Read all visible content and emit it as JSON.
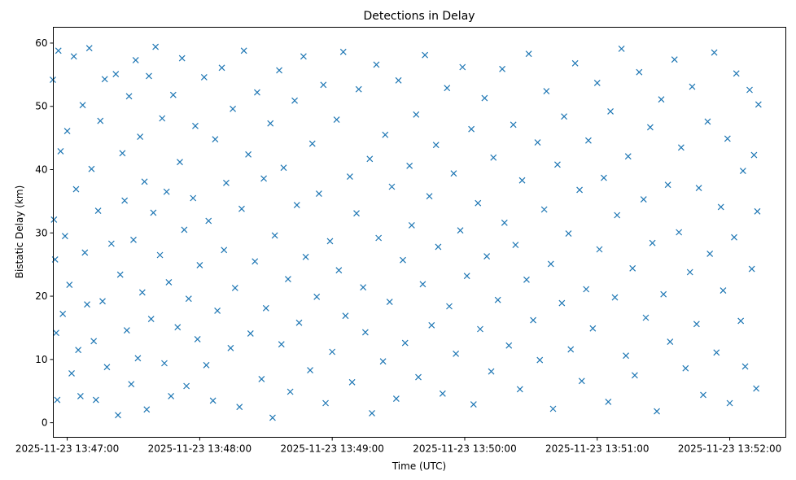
{
  "chart_data": {
    "type": "scatter",
    "title": "Detections in Delay",
    "xlabel": "Time (UTC)",
    "ylabel": "Bistatic Delay (km)",
    "marker": "x",
    "color": "#1f77b4",
    "x_unit": "seconds since 2025-11-23 13:47:00",
    "xlim": [
      -6.3,
      325.4
    ],
    "ylim": [
      -2.3,
      62.5
    ],
    "xticks": [
      {
        "value": 0,
        "label": "2025-11-23 13:47:00"
      },
      {
        "value": 60,
        "label": "2025-11-23 13:48:00"
      },
      {
        "value": 120,
        "label": "2025-11-23 13:49:00"
      },
      {
        "value": 180,
        "label": "2025-11-23 13:50:00"
      },
      {
        "value": 240,
        "label": "2025-11-23 13:51:00"
      },
      {
        "value": 300,
        "label": "2025-11-23 13:52:00"
      }
    ],
    "yticks": [
      {
        "value": 0,
        "label": "0"
      },
      {
        "value": 10,
        "label": "10"
      },
      {
        "value": 20,
        "label": "20"
      },
      {
        "value": 30,
        "label": "30"
      },
      {
        "value": 40,
        "label": "40"
      },
      {
        "value": 50,
        "label": "50"
      },
      {
        "value": 60,
        "label": "60"
      }
    ],
    "points": [
      [
        -6.5,
        54.2
      ],
      [
        -6,
        32.1
      ],
      [
        -5.5,
        25.8
      ],
      [
        -5,
        14.2
      ],
      [
        -4.5,
        3.6
      ],
      [
        -4,
        58.8
      ],
      [
        -3,
        42.9
      ],
      [
        -2,
        17.2
      ],
      [
        -1,
        29.5
      ],
      [
        0,
        46.1
      ],
      [
        1,
        21.8
      ],
      [
        2,
        7.8
      ],
      [
        3,
        57.9
      ],
      [
        4,
        36.9
      ],
      [
        5,
        11.5
      ],
      [
        6,
        4.2
      ],
      [
        7,
        50.2
      ],
      [
        8,
        26.9
      ],
      [
        9,
        18.7
      ],
      [
        10,
        59.2
      ],
      [
        11,
        40.1
      ],
      [
        12,
        12.9
      ],
      [
        13,
        3.6
      ],
      [
        14,
        33.5
      ],
      [
        15,
        47.7
      ],
      [
        16,
        19.2
      ],
      [
        17,
        54.3
      ],
      [
        18,
        8.8
      ],
      [
        20,
        28.3
      ],
      [
        22,
        55.1
      ],
      [
        23,
        1.2
      ],
      [
        24,
        23.4
      ],
      [
        25,
        42.6
      ],
      [
        26,
        35.1
      ],
      [
        27,
        14.6
      ],
      [
        28,
        51.6
      ],
      [
        29,
        6.1
      ],
      [
        30,
        28.9
      ],
      [
        31,
        57.3
      ],
      [
        32,
        10.2
      ],
      [
        33,
        45.2
      ],
      [
        34,
        20.6
      ],
      [
        35,
        38.1
      ],
      [
        36,
        2.1
      ],
      [
        37,
        54.8
      ],
      [
        38,
        16.4
      ],
      [
        39,
        33.2
      ],
      [
        40,
        59.4
      ],
      [
        42,
        26.5
      ],
      [
        43,
        48.1
      ],
      [
        44,
        9.4
      ],
      [
        45,
        36.5
      ],
      [
        46,
        22.2
      ],
      [
        47,
        4.2
      ],
      [
        48,
        51.8
      ],
      [
        50,
        15.1
      ],
      [
        51,
        41.2
      ],
      [
        52,
        57.6
      ],
      [
        53,
        30.5
      ],
      [
        54,
        5.8
      ],
      [
        55,
        19.6
      ],
      [
        57,
        35.5
      ],
      [
        58,
        46.9
      ],
      [
        59,
        13.2
      ],
      [
        60,
        24.9
      ],
      [
        62,
        54.6
      ],
      [
        63,
        9.1
      ],
      [
        64,
        31.9
      ],
      [
        66,
        3.5
      ],
      [
        67,
        44.8
      ],
      [
        68,
        17.7
      ],
      [
        70,
        56.1
      ],
      [
        71,
        27.3
      ],
      [
        72,
        37.9
      ],
      [
        74,
        11.8
      ],
      [
        75,
        49.6
      ],
      [
        76,
        21.3
      ],
      [
        78,
        2.5
      ],
      [
        79,
        33.8
      ],
      [
        80,
        58.8
      ],
      [
        82,
        42.4
      ],
      [
        83,
        14.1
      ],
      [
        85,
        25.5
      ],
      [
        86,
        52.2
      ],
      [
        88,
        6.9
      ],
      [
        89,
        38.6
      ],
      [
        90,
        18.1
      ],
      [
        92,
        47.3
      ],
      [
        93,
        0.8
      ],
      [
        94,
        29.6
      ],
      [
        96,
        55.7
      ],
      [
        97,
        12.4
      ],
      [
        98,
        40.3
      ],
      [
        100,
        22.7
      ],
      [
        101,
        4.9
      ],
      [
        103,
        50.9
      ],
      [
        104,
        34.4
      ],
      [
        105,
        15.8
      ],
      [
        107,
        57.9
      ],
      [
        108,
        26.2
      ],
      [
        110,
        8.3
      ],
      [
        111,
        44.1
      ],
      [
        113,
        19.9
      ],
      [
        114,
        36.2
      ],
      [
        116,
        53.4
      ],
      [
        117,
        3.1
      ],
      [
        119,
        28.7
      ],
      [
        120,
        11.2
      ],
      [
        122,
        47.9
      ],
      [
        123,
        24.1
      ],
      [
        125,
        58.6
      ],
      [
        126,
        16.9
      ],
      [
        128,
        38.9
      ],
      [
        129,
        6.4
      ],
      [
        131,
        33.1
      ],
      [
        132,
        52.7
      ],
      [
        134,
        21.4
      ],
      [
        135,
        14.3
      ],
      [
        137,
        41.7
      ],
      [
        138,
        1.5
      ],
      [
        140,
        56.6
      ],
      [
        141,
        29.2
      ],
      [
        143,
        9.7
      ],
      [
        144,
        45.5
      ],
      [
        146,
        19.1
      ],
      [
        147,
        37.3
      ],
      [
        149,
        3.8
      ],
      [
        150,
        54.1
      ],
      [
        152,
        25.7
      ],
      [
        153,
        12.6
      ],
      [
        155,
        40.6
      ],
      [
        156,
        31.2
      ],
      [
        158,
        48.7
      ],
      [
        159,
        7.2
      ],
      [
        161,
        21.9
      ],
      [
        162,
        58.1
      ],
      [
        164,
        35.8
      ],
      [
        165,
        15.4
      ],
      [
        167,
        43.9
      ],
      [
        168,
        27.8
      ],
      [
        170,
        4.6
      ],
      [
        172,
        52.9
      ],
      [
        173,
        18.4
      ],
      [
        175,
        39.4
      ],
      [
        176,
        10.9
      ],
      [
        178,
        30.4
      ],
      [
        179,
        56.2
      ],
      [
        181,
        23.2
      ],
      [
        183,
        46.4
      ],
      [
        184,
        2.9
      ],
      [
        186,
        34.7
      ],
      [
        187,
        14.8
      ],
      [
        189,
        51.3
      ],
      [
        190,
        26.3
      ],
      [
        192,
        8.1
      ],
      [
        193,
        41.9
      ],
      [
        195,
        19.4
      ],
      [
        197,
        55.9
      ],
      [
        198,
        31.6
      ],
      [
        200,
        12.2
      ],
      [
        202,
        47.1
      ],
      [
        203,
        28.1
      ],
      [
        205,
        5.3
      ],
      [
        206,
        38.3
      ],
      [
        208,
        22.6
      ],
      [
        209,
        58.3
      ],
      [
        211,
        16.2
      ],
      [
        213,
        44.3
      ],
      [
        214,
        9.9
      ],
      [
        216,
        33.7
      ],
      [
        217,
        52.4
      ],
      [
        219,
        25.1
      ],
      [
        220,
        2.2
      ],
      [
        222,
        40.8
      ],
      [
        224,
        18.9
      ],
      [
        225,
        48.4
      ],
      [
        227,
        29.9
      ],
      [
        228,
        11.6
      ],
      [
        230,
        56.8
      ],
      [
        232,
        36.8
      ],
      [
        233,
        6.6
      ],
      [
        235,
        21.1
      ],
      [
        236,
        44.6
      ],
      [
        238,
        14.9
      ],
      [
        240,
        53.7
      ],
      [
        241,
        27.4
      ],
      [
        243,
        38.7
      ],
      [
        245,
        3.3
      ],
      [
        246,
        49.2
      ],
      [
        248,
        19.8
      ],
      [
        249,
        32.8
      ],
      [
        251,
        59.1
      ],
      [
        253,
        10.6
      ],
      [
        254,
        42.1
      ],
      [
        256,
        24.4
      ],
      [
        257,
        7.5
      ],
      [
        259,
        55.4
      ],
      [
        261,
        35.3
      ],
      [
        262,
        16.6
      ],
      [
        264,
        46.7
      ],
      [
        265,
        28.4
      ],
      [
        267,
        1.8
      ],
      [
        269,
        51.1
      ],
      [
        270,
        20.3
      ],
      [
        272,
        37.6
      ],
      [
        273,
        12.8
      ],
      [
        275,
        57.4
      ],
      [
        277,
        30.1
      ],
      [
        278,
        43.5
      ],
      [
        280,
        8.6
      ],
      [
        282,
        23.8
      ],
      [
        283,
        53.1
      ],
      [
        285,
        15.6
      ],
      [
        286,
        37.1
      ],
      [
        288,
        4.4
      ],
      [
        290,
        47.6
      ],
      [
        291,
        26.7
      ],
      [
        293,
        58.5
      ],
      [
        294,
        11.1
      ],
      [
        296,
        34.1
      ],
      [
        297,
        20.9
      ],
      [
        299,
        44.9
      ],
      [
        300,
        3.1
      ],
      [
        302,
        29.3
      ],
      [
        303,
        55.2
      ],
      [
        305,
        16.1
      ],
      [
        306,
        39.8
      ],
      [
        307,
        8.9
      ],
      [
        309,
        52.6
      ],
      [
        310,
        24.3
      ],
      [
        311,
        42.3
      ],
      [
        312,
        5.4
      ],
      [
        312.5,
        33.4
      ],
      [
        313,
        50.3
      ]
    ]
  }
}
